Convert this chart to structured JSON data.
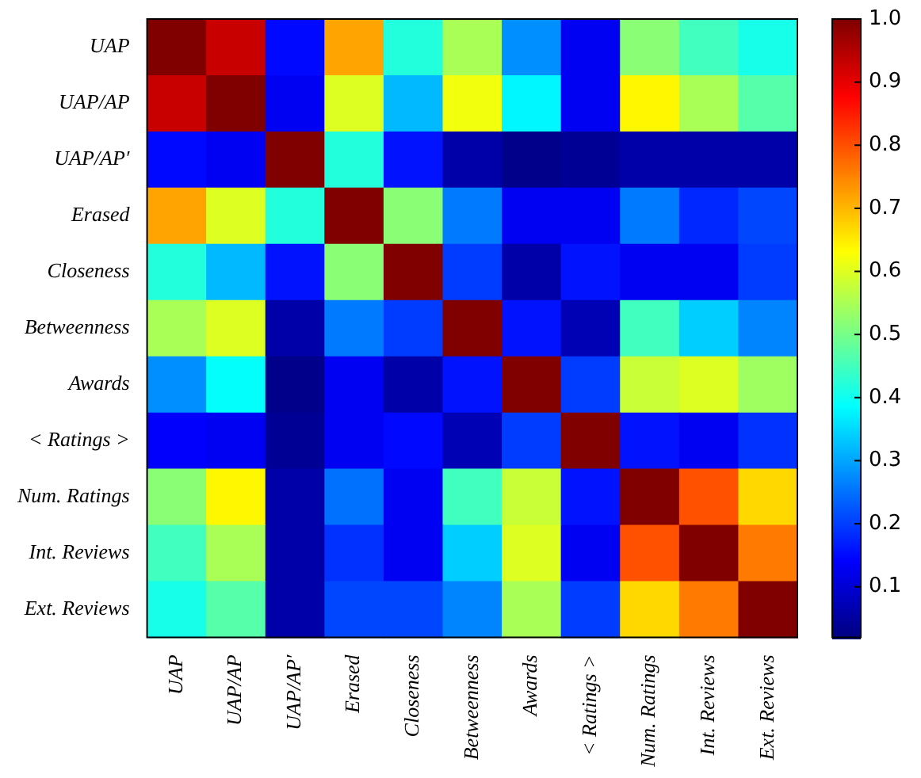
{
  "chart_data": {
    "type": "heatmap",
    "categories": [
      "UAP",
      "UAP/AP",
      "UAP/AP′",
      "Erased",
      "Closeness",
      "Betweenness",
      "Awards",
      "< Ratings >",
      "Num. Ratings",
      "Int. Reviews",
      "Ext. Reviews"
    ],
    "y_categories": [
      "UAP",
      "UAP/AP",
      "UAP/AP′",
      "Erased",
      "Closeness",
      "Betweenness",
      "Awards",
      "< Ratings >",
      "Num. Ratings",
      "Int. Reviews",
      "Ext. Reviews"
    ],
    "cells": [
      [
        1.0,
        0.93,
        0.15,
        0.72,
        0.42,
        0.55,
        0.28,
        0.13,
        0.52,
        0.45,
        0.41
      ],
      [
        0.93,
        1.0,
        0.13,
        0.6,
        0.32,
        0.62,
        0.38,
        0.13,
        0.64,
        0.55,
        0.47
      ],
      [
        0.15,
        0.13,
        1.0,
        0.42,
        0.16,
        0.06,
        0.03,
        0.04,
        0.06,
        0.06,
        0.06
      ],
      [
        0.72,
        0.6,
        0.42,
        1.0,
        0.52,
        0.26,
        0.13,
        0.13,
        0.26,
        0.18,
        0.21
      ],
      [
        0.42,
        0.32,
        0.16,
        0.52,
        1.0,
        0.2,
        0.06,
        0.16,
        0.13,
        0.13,
        0.2
      ],
      [
        0.55,
        0.6,
        0.06,
        0.26,
        0.2,
        1.0,
        0.16,
        0.07,
        0.45,
        0.34,
        0.27
      ],
      [
        0.28,
        0.39,
        0.03,
        0.13,
        0.06,
        0.16,
        1.0,
        0.2,
        0.58,
        0.6,
        0.54
      ],
      [
        0.14,
        0.13,
        0.04,
        0.13,
        0.15,
        0.07,
        0.2,
        1.0,
        0.16,
        0.13,
        0.19
      ],
      [
        0.52,
        0.64,
        0.06,
        0.25,
        0.13,
        0.45,
        0.58,
        0.16,
        1.0,
        0.8,
        0.67
      ],
      [
        0.45,
        0.55,
        0.06,
        0.19,
        0.13,
        0.34,
        0.6,
        0.13,
        0.8,
        1.0,
        0.76
      ],
      [
        0.41,
        0.47,
        0.06,
        0.21,
        0.21,
        0.27,
        0.55,
        0.2,
        0.67,
        0.76,
        1.0
      ]
    ],
    "clim": [
      0.02,
      1.0
    ],
    "cticks": [
      {
        "value": 0.1,
        "label": "0.1"
      },
      {
        "value": 0.2,
        "label": "0.2"
      },
      {
        "value": 0.3,
        "label": "0.3"
      },
      {
        "value": 0.4,
        "label": "0.4"
      },
      {
        "value": 0.5,
        "label": "0.5"
      },
      {
        "value": 0.6,
        "label": "0.6"
      },
      {
        "value": 0.7,
        "label": "0.7"
      },
      {
        "value": 0.8,
        "label": "0.8"
      },
      {
        "value": 0.9,
        "label": "0.9"
      },
      {
        "value": 1.0,
        "label": "1.0"
      }
    ]
  }
}
